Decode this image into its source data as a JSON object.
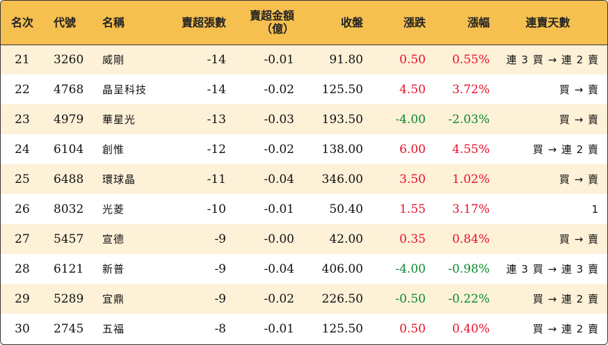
{
  "header": {
    "rank": "名次",
    "code": "代號",
    "name": "名稱",
    "net_lots": "賣超張數",
    "net_amount_line1": "賣超金額",
    "net_amount_line2": "（億）",
    "close": "收盤",
    "change": "漲跌",
    "change_pct": "漲幅",
    "streak": "連賣天數"
  },
  "rows": [
    {
      "rank": "21",
      "code": "3260",
      "name": "威剛",
      "net_lots": "-14",
      "net_amount": "-0.01",
      "close": "91.80",
      "change": "0.50",
      "change_pct": "0.55%",
      "dir": "up",
      "streak": "連 3 買 → 連 2 賣"
    },
    {
      "rank": "22",
      "code": "4768",
      "name": "晶呈科技",
      "net_lots": "-14",
      "net_amount": "-0.02",
      "close": "125.50",
      "change": "4.50",
      "change_pct": "3.72%",
      "dir": "up",
      "streak": "買 → 賣"
    },
    {
      "rank": "23",
      "code": "4979",
      "name": "華星光",
      "net_lots": "-13",
      "net_amount": "-0.03",
      "close": "193.50",
      "change": "-4.00",
      "change_pct": "-2.03%",
      "dir": "down",
      "streak": "買 → 賣"
    },
    {
      "rank": "24",
      "code": "6104",
      "name": "創惟",
      "net_lots": "-12",
      "net_amount": "-0.02",
      "close": "138.00",
      "change": "6.00",
      "change_pct": "4.55%",
      "dir": "up",
      "streak": "買 → 連 2 賣"
    },
    {
      "rank": "25",
      "code": "6488",
      "name": "環球晶",
      "net_lots": "-11",
      "net_amount": "-0.04",
      "close": "346.00",
      "change": "3.50",
      "change_pct": "1.02%",
      "dir": "up",
      "streak": "買 → 賣"
    },
    {
      "rank": "26",
      "code": "8032",
      "name": "光菱",
      "net_lots": "-10",
      "net_amount": "-0.01",
      "close": "50.40",
      "change": "1.55",
      "change_pct": "3.17%",
      "dir": "up",
      "streak": "1"
    },
    {
      "rank": "27",
      "code": "5457",
      "name": "宣德",
      "net_lots": "-9",
      "net_amount": "-0.00",
      "close": "42.00",
      "change": "0.35",
      "change_pct": "0.84%",
      "dir": "up",
      "streak": "買 → 賣"
    },
    {
      "rank": "28",
      "code": "6121",
      "name": "新普",
      "net_lots": "-9",
      "net_amount": "-0.04",
      "close": "406.00",
      "change": "-4.00",
      "change_pct": "-0.98%",
      "dir": "down",
      "streak": "連 3 買 → 連 3 賣"
    },
    {
      "rank": "29",
      "code": "5289",
      "name": "宜鼎",
      "net_lots": "-9",
      "net_amount": "-0.02",
      "close": "226.50",
      "change": "-0.50",
      "change_pct": "-0.22%",
      "dir": "down",
      "streak": "買 → 連 2 賣"
    },
    {
      "rank": "30",
      "code": "2745",
      "name": "五福",
      "net_lots": "-8",
      "net_amount": "-0.01",
      "close": "125.50",
      "change": "0.50",
      "change_pct": "0.40%",
      "dir": "up",
      "streak": "買 → 連 2 賣"
    }
  ],
  "colors": {
    "header_bg": "#f6c050",
    "stripe_bg": "#fdf1d8",
    "up": "#e8102a",
    "down": "#0a8a2a"
  }
}
